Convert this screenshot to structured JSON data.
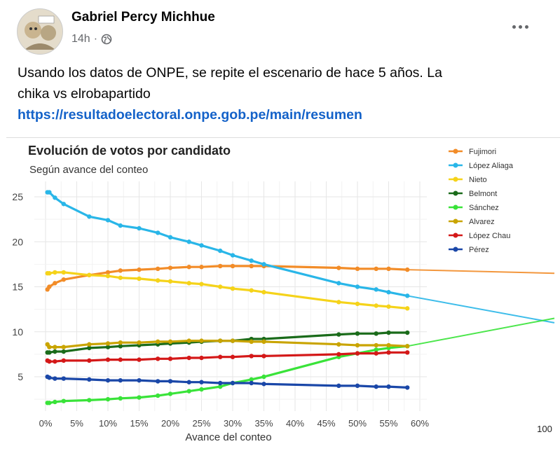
{
  "post": {
    "author": "Gabriel Percy Michhue",
    "time": "14h",
    "visibility_icon": "globe-icon",
    "more_icon": "more-options-icon",
    "text_line1": "Usando los datos de ONPE, se repite el escenario de hace 5 años. La",
    "text_line2": "chika vs elrobapartido",
    "link": "https://resultadoelectoral.onpe.gob.pe/main/resumen"
  },
  "chart_data": {
    "type": "line",
    "title": "Evolución de votos por candidato",
    "subtitle": "Según avance del conteo",
    "xlabel": "Avance del conteo",
    "ylabel": "",
    "xlim": [
      0,
      60
    ],
    "ylim": [
      1,
      26
    ],
    "x_ticks": [
      "0%",
      "5%",
      "10%",
      "15%",
      "20%",
      "25%",
      "30%",
      "35%",
      "40%",
      "45%",
      "50%",
      "55%",
      "60%"
    ],
    "y_ticks": [
      "5",
      "10",
      "15",
      "20",
      "25"
    ],
    "extra_label": "100",
    "series": [
      {
        "name": "Fujimori",
        "color": "#f28c28",
        "points": [
          [
            0.3,
            14.7
          ],
          [
            0.6,
            15.0
          ],
          [
            1.5,
            15.4
          ],
          [
            2.9,
            15.8
          ],
          [
            7,
            16.3
          ],
          [
            10,
            16.6
          ],
          [
            12,
            16.8
          ],
          [
            15,
            16.9
          ],
          [
            18,
            17.0
          ],
          [
            20,
            17.1
          ],
          [
            23,
            17.2
          ],
          [
            25,
            17.2
          ],
          [
            28,
            17.3
          ],
          [
            30,
            17.3
          ],
          [
            33,
            17.3
          ],
          [
            35,
            17.3
          ],
          [
            47,
            17.1
          ],
          [
            50,
            17.0
          ],
          [
            53,
            17.0
          ],
          [
            55,
            17.0
          ],
          [
            58,
            16.9
          ]
        ],
        "trend_to_100": 16.5
      },
      {
        "name": "López Aliaga",
        "color": "#29b6e8",
        "points": [
          [
            0.3,
            25.5
          ],
          [
            0.6,
            25.5
          ],
          [
            1.5,
            24.9
          ],
          [
            2.9,
            24.2
          ],
          [
            7,
            22.8
          ],
          [
            10,
            22.4
          ],
          [
            12,
            21.8
          ],
          [
            15,
            21.5
          ],
          [
            18,
            21.0
          ],
          [
            20,
            20.5
          ],
          [
            23,
            20.0
          ],
          [
            25,
            19.6
          ],
          [
            28,
            19.0
          ],
          [
            30,
            18.5
          ],
          [
            33,
            17.9
          ],
          [
            35,
            17.5
          ],
          [
            47,
            15.4
          ],
          [
            50,
            15.0
          ],
          [
            53,
            14.7
          ],
          [
            55,
            14.4
          ],
          [
            58,
            14.0
          ]
        ],
        "trend_to_100": 11.0
      },
      {
        "name": "Nieto",
        "color": "#f5d31a",
        "points": [
          [
            0.3,
            16.5
          ],
          [
            0.6,
            16.5
          ],
          [
            1.5,
            16.6
          ],
          [
            2.9,
            16.6
          ],
          [
            7,
            16.3
          ],
          [
            10,
            16.2
          ],
          [
            12,
            16.0
          ],
          [
            15,
            15.9
          ],
          [
            18,
            15.7
          ],
          [
            20,
            15.6
          ],
          [
            23,
            15.4
          ],
          [
            25,
            15.3
          ],
          [
            28,
            15.0
          ],
          [
            30,
            14.8
          ],
          [
            33,
            14.6
          ],
          [
            35,
            14.4
          ],
          [
            47,
            13.3
          ],
          [
            50,
            13.1
          ],
          [
            53,
            12.9
          ],
          [
            55,
            12.8
          ],
          [
            58,
            12.6
          ]
        ]
      },
      {
        "name": "Belmont",
        "color": "#1a6b1a",
        "points": [
          [
            0.3,
            7.7
          ],
          [
            0.6,
            7.7
          ],
          [
            1.5,
            7.8
          ],
          [
            2.9,
            7.8
          ],
          [
            7,
            8.2
          ],
          [
            10,
            8.3
          ],
          [
            12,
            8.4
          ],
          [
            15,
            8.5
          ],
          [
            18,
            8.6
          ],
          [
            20,
            8.7
          ],
          [
            23,
            8.8
          ],
          [
            25,
            8.9
          ],
          [
            28,
            9.0
          ],
          [
            30,
            9.0
          ],
          [
            33,
            9.2
          ],
          [
            35,
            9.2
          ],
          [
            47,
            9.7
          ],
          [
            50,
            9.8
          ],
          [
            53,
            9.8
          ],
          [
            55,
            9.9
          ],
          [
            58,
            9.9
          ]
        ]
      },
      {
        "name": "Sánchez",
        "color": "#39e339",
        "points": [
          [
            0.3,
            2.1
          ],
          [
            0.6,
            2.1
          ],
          [
            1.5,
            2.2
          ],
          [
            2.9,
            2.3
          ],
          [
            7,
            2.4
          ],
          [
            10,
            2.5
          ],
          [
            12,
            2.6
          ],
          [
            15,
            2.7
          ],
          [
            18,
            2.9
          ],
          [
            20,
            3.1
          ],
          [
            23,
            3.4
          ],
          [
            25,
            3.6
          ],
          [
            28,
            3.9
          ],
          [
            30,
            4.3
          ],
          [
            33,
            4.7
          ],
          [
            35,
            5.0
          ],
          [
            47,
            7.2
          ],
          [
            50,
            7.6
          ],
          [
            53,
            8.0
          ],
          [
            55,
            8.2
          ],
          [
            58,
            8.4
          ]
        ],
        "trend_to_100": 11.5
      },
      {
        "name": "Alvarez",
        "color": "#c9a400",
        "points": [
          [
            0.3,
            8.6
          ],
          [
            0.6,
            8.3
          ],
          [
            1.5,
            8.3
          ],
          [
            2.9,
            8.3
          ],
          [
            7,
            8.6
          ],
          [
            10,
            8.7
          ],
          [
            12,
            8.8
          ],
          [
            15,
            8.8
          ],
          [
            18,
            8.9
          ],
          [
            20,
            8.9
          ],
          [
            23,
            9.0
          ],
          [
            25,
            9.0
          ],
          [
            28,
            9.0
          ],
          [
            30,
            9.0
          ],
          [
            33,
            8.9
          ],
          [
            35,
            8.9
          ],
          [
            47,
            8.6
          ],
          [
            50,
            8.5
          ],
          [
            53,
            8.5
          ],
          [
            55,
            8.5
          ],
          [
            58,
            8.4
          ]
        ]
      },
      {
        "name": "López Chau",
        "color": "#d41818",
        "points": [
          [
            0.3,
            6.8
          ],
          [
            0.6,
            6.7
          ],
          [
            1.5,
            6.7
          ],
          [
            2.9,
            6.8
          ],
          [
            7,
            6.8
          ],
          [
            10,
            6.9
          ],
          [
            12,
            6.9
          ],
          [
            15,
            6.9
          ],
          [
            18,
            7.0
          ],
          [
            20,
            7.0
          ],
          [
            23,
            7.1
          ],
          [
            25,
            7.1
          ],
          [
            28,
            7.2
          ],
          [
            30,
            7.2
          ],
          [
            33,
            7.3
          ],
          [
            35,
            7.3
          ],
          [
            47,
            7.5
          ],
          [
            50,
            7.6
          ],
          [
            53,
            7.6
          ],
          [
            55,
            7.7
          ],
          [
            58,
            7.7
          ]
        ]
      },
      {
        "name": "Pérez",
        "color": "#1a47a8",
        "points": [
          [
            0.3,
            5.0
          ],
          [
            0.6,
            4.9
          ],
          [
            1.5,
            4.8
          ],
          [
            2.9,
            4.8
          ],
          [
            7,
            4.7
          ],
          [
            10,
            4.6
          ],
          [
            12,
            4.6
          ],
          [
            15,
            4.6
          ],
          [
            18,
            4.5
          ],
          [
            20,
            4.5
          ],
          [
            23,
            4.4
          ],
          [
            25,
            4.4
          ],
          [
            28,
            4.3
          ],
          [
            30,
            4.3
          ],
          [
            33,
            4.3
          ],
          [
            35,
            4.2
          ],
          [
            47,
            4.0
          ],
          [
            50,
            4.0
          ],
          [
            53,
            3.9
          ],
          [
            55,
            3.9
          ],
          [
            58,
            3.8
          ]
        ]
      }
    ]
  }
}
